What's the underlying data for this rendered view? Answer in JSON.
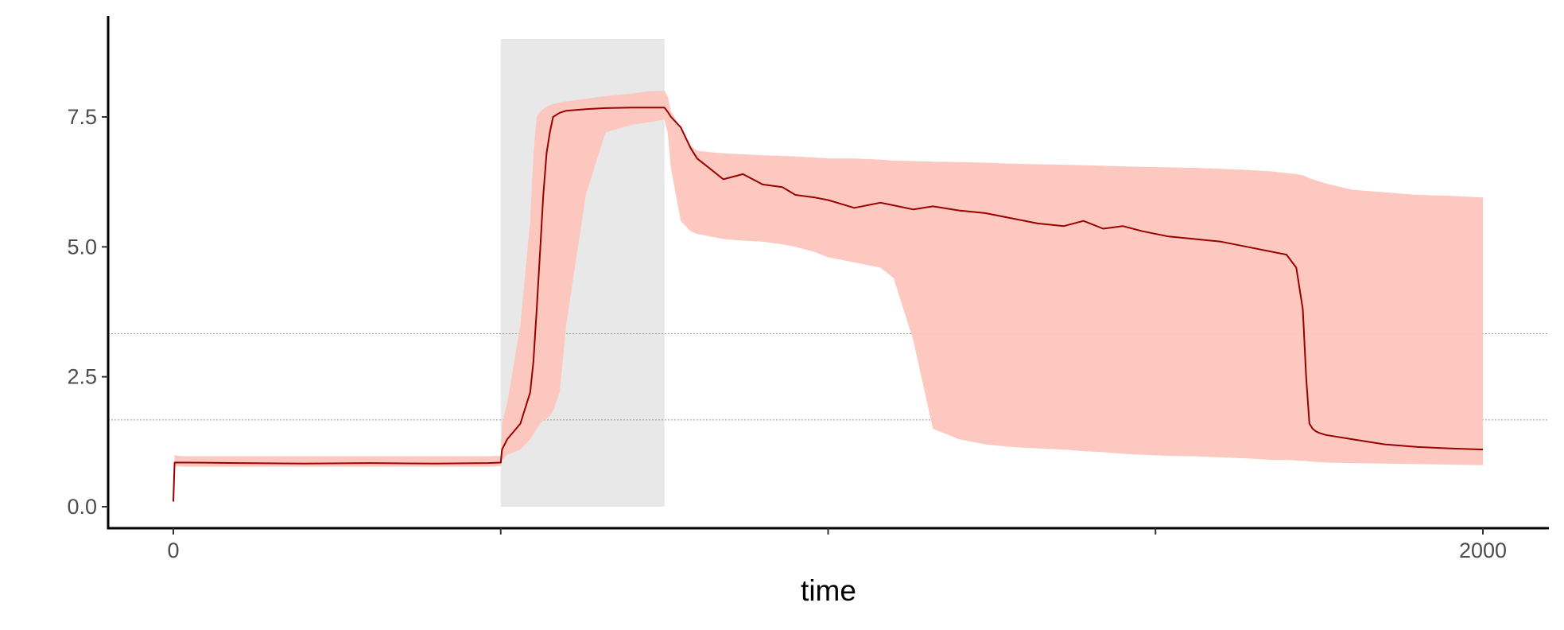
{
  "chart_data": {
    "type": "line",
    "title": "",
    "xlabel": "time",
    "ylabel": "",
    "xlim": [
      -50,
      2100
    ],
    "ylim": [
      -0.4,
      9.4
    ],
    "x_ticks": [
      {
        "value": 0,
        "label": "0"
      },
      {
        "value": 500,
        "label": ""
      },
      {
        "value": 1000,
        "label": ""
      },
      {
        "value": 1500,
        "label": ""
      },
      {
        "value": 2000,
        "label": "2000"
      }
    ],
    "y_ticks": [
      {
        "value": 0,
        "label": "0.0"
      },
      {
        "value": 2.5,
        "label": "2.5"
      },
      {
        "value": 5,
        "label": "5.0"
      },
      {
        "value": 7.5,
        "label": "7.5"
      }
    ],
    "grid": false,
    "reference_lines_y": [
      1.67,
      3.33
    ],
    "shaded_region": {
      "x": [
        500,
        750
      ],
      "y": [
        0,
        9.0
      ],
      "color": "#e8e8e8"
    },
    "colors": {
      "line": "#990000",
      "band": "#fcc5bd",
      "reference": "#999999",
      "axis": "#000000"
    },
    "series": [
      {
        "x": [
          0,
          2,
          5,
          20,
          100,
          200,
          300,
          400,
          480,
          500,
          502,
          510,
          530,
          545,
          550,
          555,
          560,
          565,
          570,
          575,
          580,
          590,
          600,
          630,
          660,
          700,
          730,
          750,
          755,
          760,
          775,
          790,
          800,
          820,
          840,
          870,
          900,
          930,
          950,
          980,
          1000,
          1040,
          1080,
          1100,
          1130,
          1160,
          1200,
          1240,
          1280,
          1320,
          1360,
          1390,
          1420,
          1450,
          1480,
          1520,
          1560,
          1600,
          1640,
          1680,
          1700,
          1715,
          1725,
          1730,
          1735,
          1740,
          1745,
          1750,
          1760,
          1800,
          1850,
          1900,
          1950,
          2000
        ],
        "y": [
          0.1,
          0.85,
          0.85,
          0.85,
          0.84,
          0.83,
          0.84,
          0.83,
          0.84,
          0.85,
          1.1,
          1.3,
          1.6,
          2.2,
          2.8,
          3.8,
          4.9,
          6.0,
          6.8,
          7.2,
          7.5,
          7.58,
          7.62,
          7.65,
          7.67,
          7.68,
          7.68,
          7.68,
          7.6,
          7.5,
          7.3,
          6.9,
          6.7,
          6.5,
          6.3,
          6.4,
          6.2,
          6.15,
          6.0,
          5.95,
          5.9,
          5.75,
          5.85,
          5.8,
          5.72,
          5.78,
          5.7,
          5.65,
          5.55,
          5.45,
          5.4,
          5.5,
          5.35,
          5.4,
          5.3,
          5.2,
          5.15,
          5.1,
          5.0,
          4.9,
          4.85,
          4.6,
          3.8,
          2.5,
          1.6,
          1.5,
          1.45,
          1.42,
          1.38,
          1.3,
          1.2,
          1.15,
          1.12,
          1.1
        ],
        "lower": [
          0.1,
          0.8,
          0.78,
          0.77,
          0.77,
          0.77,
          0.77,
          0.77,
          0.77,
          0.78,
          0.9,
          1.0,
          1.1,
          1.3,
          1.4,
          1.5,
          1.6,
          1.65,
          1.7,
          1.75,
          1.85,
          2.2,
          3.5,
          6.0,
          7.2,
          7.35,
          7.4,
          7.45,
          7.2,
          6.5,
          5.5,
          5.3,
          5.25,
          5.2,
          5.15,
          5.12,
          5.1,
          5.05,
          5.0,
          4.9,
          4.8,
          4.7,
          4.6,
          4.4,
          3.2,
          1.5,
          1.3,
          1.2,
          1.15,
          1.12,
          1.1,
          1.07,
          1.05,
          1.02,
          1.0,
          0.98,
          0.97,
          0.95,
          0.93,
          0.9,
          0.9,
          0.89,
          0.88,
          0.88,
          0.87,
          0.87,
          0.86,
          0.86,
          0.85,
          0.84,
          0.83,
          0.82,
          0.81,
          0.8
        ],
        "upper": [
          0.1,
          1.0,
          0.98,
          0.97,
          0.97,
          0.97,
          0.97,
          0.97,
          0.97,
          0.98,
          1.6,
          2.0,
          3.5,
          5.5,
          6.8,
          7.5,
          7.6,
          7.65,
          7.7,
          7.72,
          7.75,
          7.78,
          7.8,
          7.85,
          7.9,
          7.95,
          8.0,
          8.0,
          7.9,
          7.6,
          7.3,
          6.95,
          6.85,
          6.82,
          6.8,
          6.78,
          6.76,
          6.75,
          6.74,
          6.72,
          6.7,
          6.7,
          6.68,
          6.66,
          6.65,
          6.64,
          6.63,
          6.62,
          6.6,
          6.59,
          6.58,
          6.57,
          6.56,
          6.55,
          6.54,
          6.53,
          6.52,
          6.5,
          6.48,
          6.45,
          6.42,
          6.4,
          6.38,
          6.35,
          6.32,
          6.3,
          6.28,
          6.26,
          6.22,
          6.1,
          6.05,
          6.0,
          5.98,
          5.95
        ]
      }
    ]
  }
}
